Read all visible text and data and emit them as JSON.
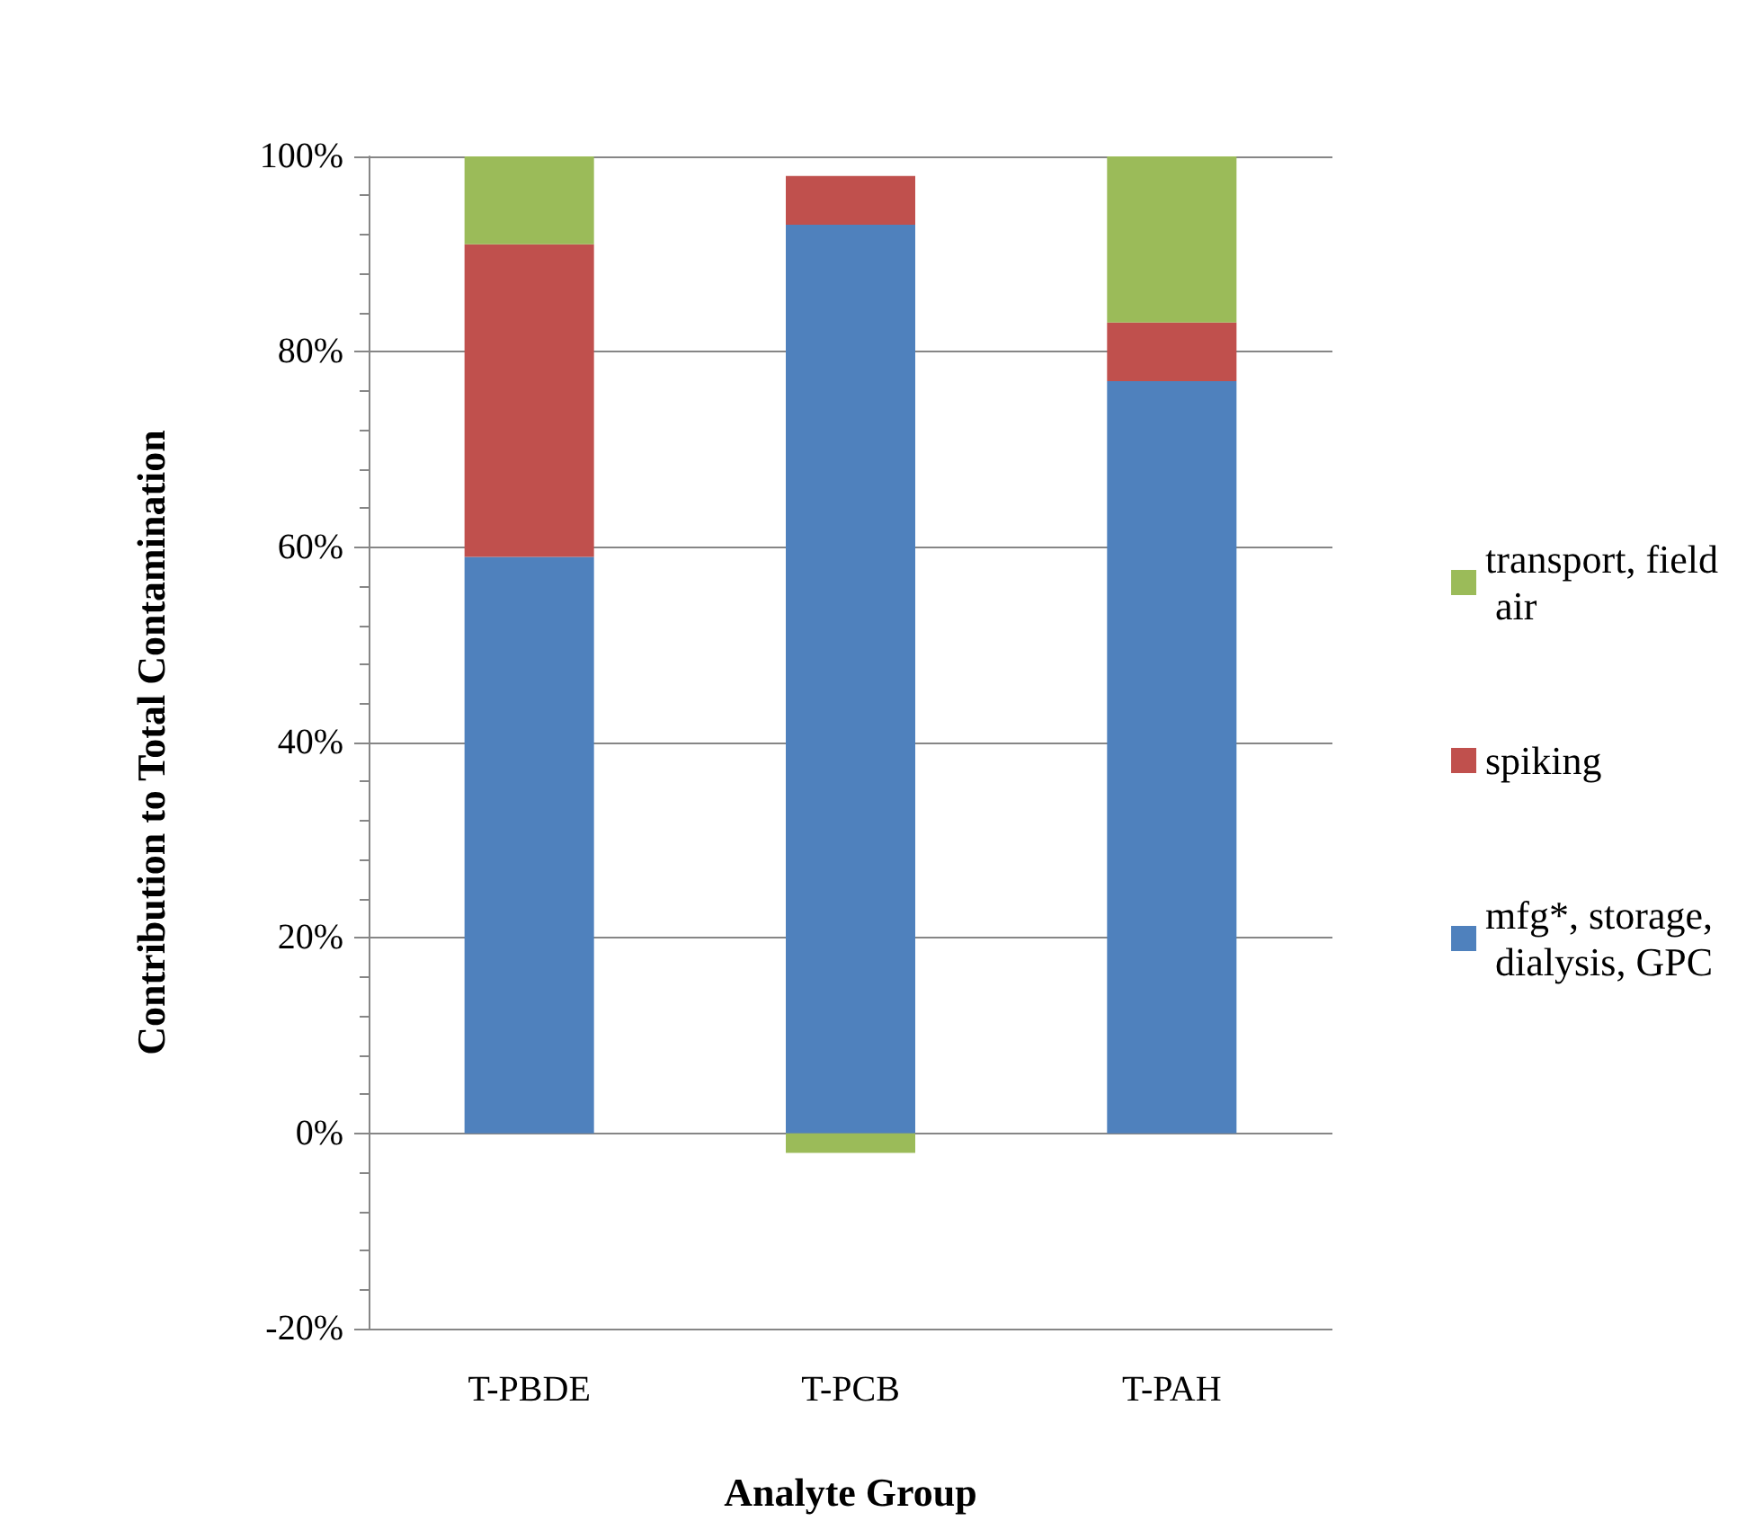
{
  "chart_data": {
    "type": "bar",
    "stacked": true,
    "xlabel": "Analyte Group",
    "ylabel": "Contribution to Total Contamination",
    "categories": [
      "T-PBDE",
      "T-PCB",
      "T-PAH"
    ],
    "series": [
      {
        "name": "mfg*, storage, dialysis, GPC",
        "color": "#4f81bd",
        "values": [
          59,
          93,
          77
        ]
      },
      {
        "name": "spiking",
        "color": "#c0504d",
        "values": [
          32,
          5,
          6
        ]
      },
      {
        "name": "transport, field air",
        "color": "#9bbb59",
        "values": [
          9,
          -2,
          17
        ]
      }
    ],
    "ylim": [
      -20,
      100
    ],
    "yticks": [
      {
        "value": -20,
        "label": "-20%"
      },
      {
        "value": 0,
        "label": "0%"
      },
      {
        "value": 20,
        "label": "20%"
      },
      {
        "value": 40,
        "label": "40%"
      },
      {
        "value": 60,
        "label": "60%"
      },
      {
        "value": 80,
        "label": "80%"
      },
      {
        "value": 100,
        "label": "100%"
      }
    ],
    "grid": "y",
    "legend": "right"
  }
}
